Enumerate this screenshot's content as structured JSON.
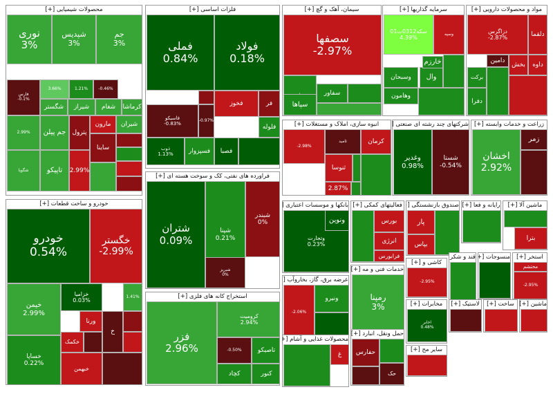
{
  "colors": {
    "dark_green": "#005c05",
    "green": "#1c8c1c",
    "mid_green": "#37a637",
    "light_green": "#5fc95f",
    "bright_green": "#7eff3f",
    "red": "#c1171b",
    "dark_red": "#5a0f11",
    "maroon": "#8a1014"
  },
  "sectors": [
    {
      "title": "محصولات شیمیایی [+]",
      "tiles": [
        {
          "name": "نوری",
          "change": "3%"
        },
        {
          "name": "شپدیس",
          "change": "3%"
        },
        {
          "name": "جم",
          "change": "3%"
        },
        {
          "name": "فارس",
          "change": "-0.1%"
        },
        {
          "name": "",
          "change": "3.66%"
        },
        {
          "name": "",
          "change": "1.21%"
        },
        {
          "name": "",
          "change": "-0.46%"
        },
        {
          "name": "شگستر",
          "change": ""
        },
        {
          "name": "شیراز",
          "change": ""
        },
        {
          "name": "شغام",
          "change": ""
        },
        {
          "name": "کرماشا",
          "change": ""
        },
        {
          "name": "",
          "change": "2.99%"
        },
        {
          "name": "جم پیلن",
          "change": ""
        },
        {
          "name": "پترول",
          "change": ""
        },
        {
          "name": "مارون",
          "change": ""
        },
        {
          "name": "شیران",
          "change": ""
        },
        {
          "name": "شگویا",
          "change": ""
        },
        {
          "name": "تاپیکو",
          "change": ""
        },
        {
          "name": "",
          "change": "2.99%"
        },
        {
          "name": "ساینا",
          "change": ""
        }
      ]
    },
    {
      "title": "فلزات اساسی [+]",
      "tiles": [
        {
          "name": "فملی",
          "change": "0.84%"
        },
        {
          "name": "فولاد",
          "change": "0.18%"
        },
        {
          "name": "فخوز",
          "change": ""
        },
        {
          "name": "فر",
          "change": ""
        },
        {
          "name": "فلوله",
          "change": ""
        },
        {
          "name": "فاسیکو",
          "change": "-0.83%"
        },
        {
          "name": "",
          "change": "-0.97%"
        },
        {
          "name": "ذوب",
          "change": "1.13%"
        },
        {
          "name": "فسپزوار",
          "change": ""
        },
        {
          "name": "فصبا",
          "change": ""
        }
      ]
    },
    {
      "title": "فراورده های نفتی، کک و سوخت هسته ای [+]",
      "tiles": [
        {
          "name": "شتران",
          "change": "0.09%"
        },
        {
          "name": "شپنا",
          "change": "0.21%"
        },
        {
          "name": "شبندر",
          "change": "0%"
        },
        {
          "name": "شبریز",
          "change": "0%"
        }
      ]
    },
    {
      "title": "استخراج کانه های فلزی [+]",
      "tiles": [
        {
          "name": "فزر",
          "change": "2.96%"
        },
        {
          "name": "کرومیت",
          "change": "2.94%"
        },
        {
          "name": "",
          "change": "-0.50%"
        },
        {
          "name": "تاصیکو",
          "change": ""
        },
        {
          "name": "کنور",
          "change": ""
        },
        {
          "name": "کچاد",
          "change": ""
        }
      ]
    },
    {
      "title": "خودرو و ساخت قطعات [+]",
      "tiles": [
        {
          "name": "خودرو",
          "change": "0.54%"
        },
        {
          "name": "خگستر",
          "change": "-2.99%"
        },
        {
          "name": "خیمن",
          "change": "2.99%"
        },
        {
          "name": "خزامیا",
          "change": "0.03%"
        },
        {
          "name": "",
          "change": "1.41%"
        },
        {
          "name": "ورنا",
          "change": ""
        },
        {
          "name": "خکمک",
          "change": ""
        },
        {
          "name": "خ",
          "change": ""
        },
        {
          "name": "خساپا",
          "change": "0.22%"
        },
        {
          "name": "خبهمن",
          "change": ""
        }
      ]
    },
    {
      "title": "سیمان، آهک و گچ [+]",
      "tiles": [
        {
          "name": "سصفها",
          "change": "-2.97%"
        },
        {
          "name": "سمازن",
          "change": ""
        },
        {
          "name": "سپاها",
          "change": ""
        },
        {
          "name": "سفاور",
          "change": ""
        }
      ]
    },
    {
      "title": "سرمایه گذاریها [+]",
      "tiles": [
        {
          "name": "سکه0312ت01",
          "change": "4.39%"
        },
        {
          "name": "وسپه",
          "change": ""
        },
        {
          "name": "وال",
          "change": ""
        },
        {
          "name": "خارزم",
          "change": ""
        },
        {
          "name": "وسبحان",
          "change": ""
        },
        {
          "name": "وهامون",
          "change": ""
        }
      ]
    },
    {
      "title": "مواد و محصولات دارویی [+]",
      "tiles": [
        {
          "name": "دزاگرس",
          "change": "-2.87%"
        },
        {
          "name": "دلقما",
          "change": ""
        },
        {
          "name": "داوه",
          "change": ""
        },
        {
          "name": "بخش",
          "change": ""
        },
        {
          "name": "دامین",
          "change": ""
        },
        {
          "name": "برکت",
          "change": ""
        },
        {
          "name": "دفرا",
          "change": ""
        }
      ]
    },
    {
      "title": "انبوه سازی، املاک و مستغلات [+]",
      "tiles": [
        {
          "name": "",
          "change": "-2.98%"
        },
        {
          "name": "ثامید",
          "change": ""
        },
        {
          "name": "کرمان",
          "change": ""
        },
        {
          "name": "ثنوسا",
          "change": ""
        },
        {
          "name": "",
          "change": "2.87%"
        }
      ]
    },
    {
      "title": "شرکتهای چند رشته ای صنعتی [+]",
      "tiles": [
        {
          "name": "وغدیر",
          "change": "0.98%"
        },
        {
          "name": "شستا",
          "change": "-0.54%"
        }
      ]
    },
    {
      "title": "زراعت و خدمات وابسته [+]",
      "tiles": [
        {
          "name": "اخشان",
          "change": "2.92%"
        },
        {
          "name": "زمر",
          "change": ""
        }
      ]
    },
    {
      "title": "بانکها و موسسات اعتباری [+]",
      "tiles": [
        {
          "name": "وتجارت",
          "change": "0.23%"
        },
        {
          "name": "ونوین",
          "change": ""
        }
      ]
    },
    {
      "title": "فعالیتهای کمکی [+]",
      "tiles": [
        {
          "name": "بورس",
          "change": ""
        },
        {
          "name": "انرژی",
          "change": ""
        },
        {
          "name": "فرابورس",
          "change": ""
        }
      ]
    },
    {
      "title": "صندوق بازنشستگی [+]",
      "tiles": [
        {
          "name": "پار",
          "change": ""
        },
        {
          "name": "بپاس",
          "change": ""
        }
      ]
    },
    {
      "title": "رایانه و فعا [+]",
      "tiles": []
    },
    {
      "title": "ماشین آلا [+]",
      "tiles": [
        {
          "name": "بترا",
          "change": ""
        }
      ]
    },
    {
      "title": "عرضه برق، گاز، بخاروآب [+]",
      "tiles": [
        {
          "name": "",
          "change": "-2.06%"
        },
        {
          "name": "ونیرو",
          "change": ""
        }
      ]
    },
    {
      "title": "خدمات فنی و مه [+]",
      "tiles": [
        {
          "name": "رمپنا",
          "change": "3%"
        }
      ]
    },
    {
      "title": "محصولات غذایی و آشام [+]",
      "tiles": [
        {
          "name": "غ",
          "change": ""
        }
      ]
    },
    {
      "title": "حمل ونقل، انبارد [+]",
      "tiles": [
        {
          "name": "حفارس",
          "change": ""
        },
        {
          "name": "حک",
          "change": ""
        }
      ]
    },
    {
      "title": "کاشی و [+]",
      "tiles": [
        {
          "name": "",
          "change": "-2.95%"
        }
      ]
    },
    {
      "title": "قند و شکر [+]",
      "tiles": []
    },
    {
      "title": "منسوجات [+]",
      "tiles": []
    },
    {
      "title": "استخر [+]",
      "tiles": [
        {
          "name": "محتشم",
          "change": ""
        },
        {
          "name": "",
          "change": "-2.95%"
        }
      ]
    },
    {
      "title": "مخابرات [+]",
      "tiles": [
        {
          "name": "اخابر",
          "change": "0.48%"
        }
      ]
    },
    {
      "title": "لاستیک [+]",
      "tiles": []
    },
    {
      "title": "ساخت [+]",
      "tiles": []
    },
    {
      "title": "ماشین [+]",
      "tiles": []
    },
    {
      "title": "سایر مح [+]",
      "tiles": []
    }
  ]
}
